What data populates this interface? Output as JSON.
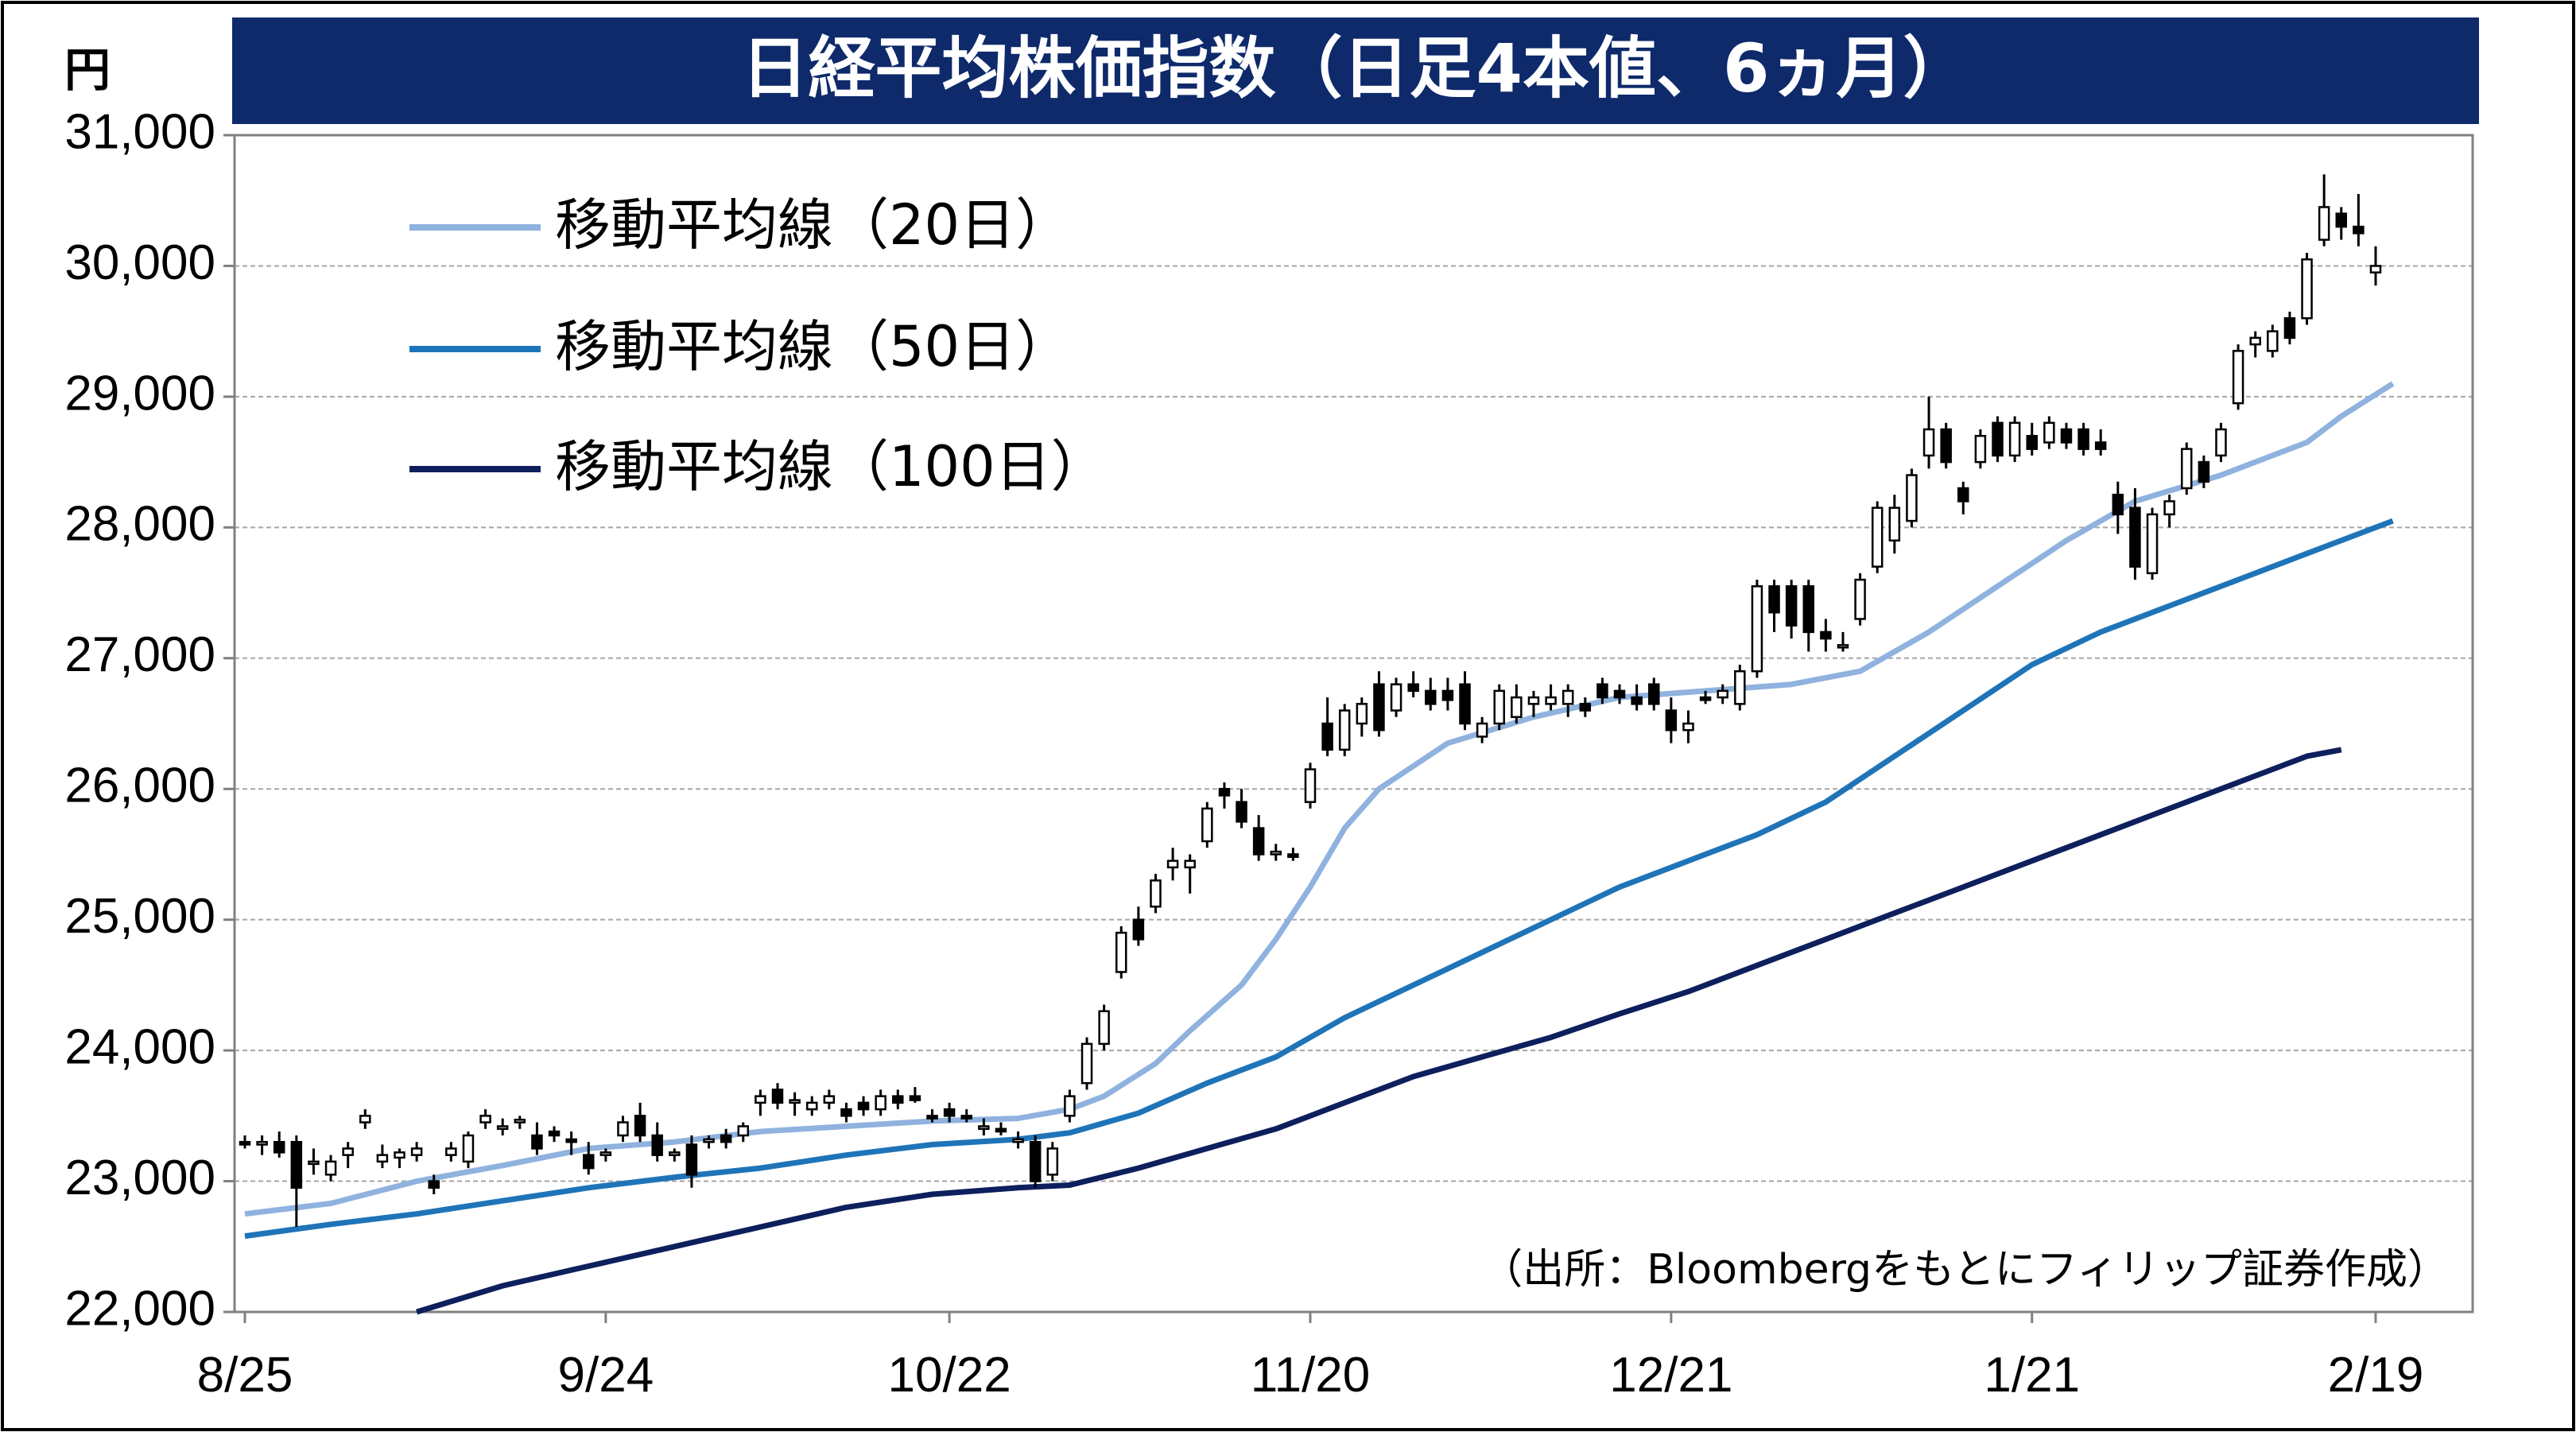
{
  "chart_data": {
    "type": "candlestick",
    "title": "日経平均株価指数（日足4本値、6ヵ月）",
    "unit": "円",
    "ylim": [
      22000,
      31000
    ],
    "y_ticks": [
      "22,000",
      "23,000",
      "24,000",
      "25,000",
      "26,000",
      "27,000",
      "28,000",
      "29,000",
      "30,000",
      "31,000"
    ],
    "x_ticks": [
      "8/25",
      "9/24",
      "10/22",
      "11/20",
      "12/21",
      "1/21",
      "2/19"
    ],
    "grid": "horizontal",
    "legend_position": "top-left",
    "legend": [
      "移動平均線（20日）",
      "移動平均線（50日）",
      "移動平均線（100日）"
    ],
    "source": "（出所：Bloombergをもとにフィリップ証券作成）",
    "colors": {
      "ma20": "#8fb2de",
      "ma50": "#1f74b8",
      "ma100": "#0d1f5c",
      "title_bg": "#0e2a6b",
      "grid": "#a6a6a6"
    },
    "candles": [
      [
        23300,
        23350,
        23250,
        23280
      ],
      [
        23280,
        23350,
        23200,
        23300
      ],
      [
        23300,
        23380,
        23180,
        23220
      ],
      [
        23300,
        23350,
        22650,
        22950
      ],
      [
        23150,
        23250,
        23050,
        23150
      ],
      [
        23050,
        23200,
        23000,
        23150
      ],
      [
        23200,
        23300,
        23100,
        23250
      ],
      [
        23450,
        23550,
        23400,
        23500
      ],
      [
        23150,
        23280,
        23100,
        23200
      ],
      [
        23180,
        23250,
        23100,
        23220
      ],
      [
        23200,
        23300,
        23150,
        23250
      ],
      [
        23000,
        23050,
        22900,
        22950
      ],
      [
        23200,
        23300,
        23150,
        23250
      ],
      [
        23150,
        23380,
        23100,
        23350
      ],
      [
        23450,
        23550,
        23400,
        23500
      ],
      [
        23400,
        23480,
        23350,
        23420
      ],
      [
        23450,
        23500,
        23400,
        23470
      ],
      [
        23350,
        23450,
        23200,
        23250
      ],
      [
        23380,
        23420,
        23300,
        23350
      ],
      [
        23320,
        23380,
        23200,
        23300
      ],
      [
        23200,
        23300,
        23050,
        23100
      ],
      [
        23200,
        23250,
        23150,
        23220
      ],
      [
        23350,
        23500,
        23300,
        23450
      ],
      [
        23500,
        23600,
        23300,
        23350
      ],
      [
        23350,
        23450,
        23150,
        23200
      ],
      [
        23200,
        23250,
        23150,
        23220
      ],
      [
        23280,
        23350,
        22950,
        23050
      ],
      [
        23300,
        23350,
        23250,
        23320
      ],
      [
        23350,
        23400,
        23250,
        23300
      ],
      [
        23350,
        23450,
        23300,
        23420
      ],
      [
        23600,
        23700,
        23500,
        23650
      ],
      [
        23700,
        23750,
        23550,
        23600
      ],
      [
        23600,
        23680,
        23500,
        23620
      ],
      [
        23550,
        23650,
        23500,
        23600
      ],
      [
        23600,
        23700,
        23550,
        23650
      ],
      [
        23550,
        23600,
        23450,
        23500
      ],
      [
        23600,
        23650,
        23500,
        23550
      ],
      [
        23550,
        23700,
        23500,
        23650
      ],
      [
        23650,
        23700,
        23550,
        23600
      ],
      [
        23650,
        23720,
        23600,
        23620
      ],
      [
        23500,
        23550,
        23450,
        23480
      ],
      [
        23550,
        23600,
        23450,
        23500
      ],
      [
        23500,
        23550,
        23450,
        23480
      ],
      [
        23400,
        23480,
        23350,
        23420
      ],
      [
        23400,
        23450,
        23350,
        23380
      ],
      [
        23300,
        23380,
        23250,
        23320
      ],
      [
        23300,
        23350,
        22950,
        23000
      ],
      [
        23050,
        23300,
        23000,
        23250
      ],
      [
        23500,
        23700,
        23450,
        23650
      ],
      [
        23750,
        24100,
        23700,
        24050
      ],
      [
        24050,
        24350,
        24000,
        24300
      ],
      [
        24600,
        24950,
        24550,
        24900
      ],
      [
        25000,
        25100,
        24800,
        24850
      ],
      [
        25100,
        25350,
        25050,
        25300
      ],
      [
        25400,
        25550,
        25300,
        25450
      ],
      [
        25400,
        25500,
        25200,
        25450
      ],
      [
        25600,
        25900,
        25550,
        25850
      ],
      [
        26000,
        26050,
        25850,
        25950
      ],
      [
        25900,
        26000,
        25700,
        25750
      ],
      [
        25700,
        25800,
        25450,
        25500
      ],
      [
        25500,
        25580,
        25450,
        25520
      ],
      [
        25500,
        25550,
        25450,
        25480
      ],
      [
        25900,
        26200,
        25850,
        26150
      ],
      [
        26500,
        26700,
        26250,
        26300
      ],
      [
        26300,
        26650,
        26250,
        26600
      ],
      [
        26500,
        26700,
        26400,
        26650
      ],
      [
        26800,
        26900,
        26400,
        26450
      ],
      [
        26600,
        26850,
        26550,
        26800
      ],
      [
        26800,
        26900,
        26700,
        26750
      ],
      [
        26750,
        26850,
        26600,
        26650
      ],
      [
        26750,
        26850,
        26600,
        26680
      ],
      [
        26800,
        26900,
        26450,
        26500
      ],
      [
        26400,
        26550,
        26350,
        26500
      ],
      [
        26500,
        26800,
        26450,
        26750
      ],
      [
        26550,
        26800,
        26500,
        26700
      ],
      [
        26650,
        26750,
        26550,
        26700
      ],
      [
        26650,
        26800,
        26600,
        26700
      ],
      [
        26650,
        26800,
        26550,
        26750
      ],
      [
        26650,
        26700,
        26550,
        26600
      ],
      [
        26800,
        26850,
        26650,
        26700
      ],
      [
        26750,
        26800,
        26650,
        26700
      ],
      [
        26700,
        26800,
        26600,
        26650
      ],
      [
        26800,
        26850,
        26600,
        26650
      ],
      [
        26600,
        26700,
        26350,
        26450
      ],
      [
        26450,
        26600,
        26350,
        26500
      ],
      [
        26700,
        26750,
        26650,
        26680
      ],
      [
        26700,
        26800,
        26650,
        26750
      ],
      [
        26650,
        26950,
        26600,
        26900
      ],
      [
        26900,
        27600,
        26850,
        27550
      ],
      [
        27550,
        27600,
        27200,
        27350
      ],
      [
        27550,
        27600,
        27150,
        27250
      ],
      [
        27550,
        27600,
        27050,
        27200
      ],
      [
        27200,
        27300,
        27050,
        27150
      ],
      [
        27100,
        27200,
        27050,
        27100
      ],
      [
        27300,
        27650,
        27250,
        27600
      ],
      [
        27700,
        28200,
        27650,
        28150
      ],
      [
        27900,
        28250,
        27800,
        28150
      ],
      [
        28050,
        28450,
        28000,
        28400
      ],
      [
        28550,
        29000,
        28450,
        28750
      ],
      [
        28750,
        28800,
        28450,
        28500
      ],
      [
        28300,
        28350,
        28100,
        28200
      ],
      [
        28500,
        28750,
        28450,
        28700
      ],
      [
        28800,
        28850,
        28500,
        28550
      ],
      [
        28550,
        28850,
        28500,
        28800
      ],
      [
        28700,
        28800,
        28550,
        28600
      ],
      [
        28650,
        28850,
        28600,
        28800
      ],
      [
        28750,
        28800,
        28600,
        28650
      ],
      [
        28750,
        28800,
        28550,
        28600
      ],
      [
        28650,
        28750,
        28550,
        28600
      ],
      [
        28250,
        28350,
        27950,
        28100
      ],
      [
        28150,
        28300,
        27600,
        27700
      ],
      [
        27650,
        28150,
        27600,
        28100
      ],
      [
        28100,
        28250,
        28000,
        28200
      ],
      [
        28300,
        28650,
        28250,
        28600
      ],
      [
        28500,
        28550,
        28300,
        28350
      ],
      [
        28550,
        28800,
        28500,
        28750
      ],
      [
        28950,
        29400,
        28900,
        29350
      ],
      [
        29400,
        29500,
        29300,
        29450
      ],
      [
        29350,
        29550,
        29300,
        29500
      ],
      [
        29600,
        29650,
        29400,
        29450
      ],
      [
        29600,
        30100,
        29550,
        30050
      ],
      [
        30200,
        30700,
        30150,
        30450
      ],
      [
        30400,
        30450,
        30200,
        30300
      ],
      [
        30300,
        30550,
        30150,
        30250
      ],
      [
        29950,
        30150,
        29850,
        30000
      ]
    ],
    "ma20": [
      [
        0,
        22750
      ],
      [
        5,
        22830
      ],
      [
        10,
        23000
      ],
      [
        15,
        23120
      ],
      [
        20,
        23250
      ],
      [
        25,
        23300
      ],
      [
        30,
        23380
      ],
      [
        35,
        23420
      ],
      [
        40,
        23460
      ],
      [
        45,
        23480
      ],
      [
        48,
        23550
      ],
      [
        50,
        23650
      ],
      [
        53,
        23900
      ],
      [
        55,
        24150
      ],
      [
        58,
        24500
      ],
      [
        60,
        24850
      ],
      [
        62,
        25250
      ],
      [
        64,
        25700
      ],
      [
        66,
        26000
      ],
      [
        70,
        26350
      ],
      [
        75,
        26550
      ],
      [
        80,
        26700
      ],
      [
        85,
        26750
      ],
      [
        90,
        26800
      ],
      [
        94,
        26900
      ],
      [
        98,
        27200
      ],
      [
        102,
        27550
      ],
      [
        106,
        27900
      ],
      [
        110,
        28200
      ],
      [
        115,
        28400
      ],
      [
        120,
        28650
      ],
      [
        122,
        28850
      ],
      [
        125,
        29100
      ]
    ],
    "ma50": [
      [
        0,
        22580
      ],
      [
        5,
        22670
      ],
      [
        10,
        22750
      ],
      [
        15,
        22850
      ],
      [
        20,
        22950
      ],
      [
        25,
        23030
      ],
      [
        30,
        23100
      ],
      [
        35,
        23200
      ],
      [
        40,
        23280
      ],
      [
        45,
        23320
      ],
      [
        48,
        23370
      ],
      [
        52,
        23520
      ],
      [
        56,
        23750
      ],
      [
        60,
        23950
      ],
      [
        64,
        24250
      ],
      [
        68,
        24500
      ],
      [
        72,
        24750
      ],
      [
        76,
        25000
      ],
      [
        80,
        25250
      ],
      [
        84,
        25450
      ],
      [
        88,
        25650
      ],
      [
        92,
        25900
      ],
      [
        96,
        26250
      ],
      [
        100,
        26600
      ],
      [
        104,
        26950
      ],
      [
        108,
        27200
      ],
      [
        112,
        27400
      ],
      [
        116,
        27600
      ],
      [
        120,
        27800
      ],
      [
        125,
        28050
      ]
    ],
    "ma100": [
      [
        10,
        22000
      ],
      [
        15,
        22200
      ],
      [
        20,
        22350
      ],
      [
        25,
        22500
      ],
      [
        30,
        22650
      ],
      [
        35,
        22800
      ],
      [
        40,
        22900
      ],
      [
        45,
        22950
      ],
      [
        48,
        22970
      ],
      [
        52,
        23100
      ],
      [
        56,
        23250
      ],
      [
        60,
        23400
      ],
      [
        64,
        23600
      ],
      [
        68,
        23800
      ],
      [
        72,
        23950
      ],
      [
        76,
        24100
      ],
      [
        80,
        24280
      ],
      [
        84,
        24450
      ],
      [
        88,
        24650
      ],
      [
        92,
        24850
      ],
      [
        96,
        25050
      ],
      [
        100,
        25250
      ],
      [
        104,
        25450
      ],
      [
        108,
        25650
      ],
      [
        112,
        25850
      ],
      [
        116,
        26050
      ],
      [
        120,
        26250
      ],
      [
        122,
        26300
      ]
    ]
  }
}
